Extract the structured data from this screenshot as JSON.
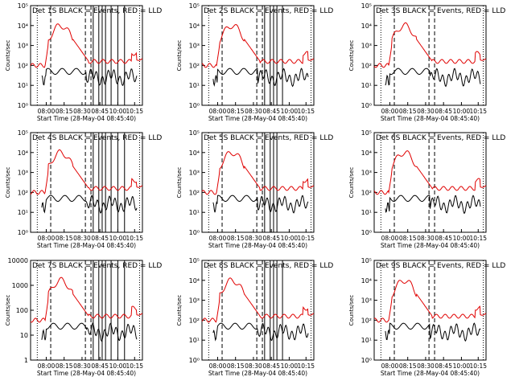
{
  "page": {
    "background": "#ffffff"
  },
  "colors": {
    "events": "#000000",
    "lld": "#e00000",
    "axis": "#000000"
  },
  "common": {
    "xlabel": "Start Time (28-May-04 08:45:40)",
    "ylabel": "Counts/sec",
    "xticks": [
      "08:00",
      "08:15",
      "08:30",
      "08:45",
      "10:00",
      "10:15"
    ],
    "legend_events": "BLACK = Events,",
    "legend_lld": "RED = LLD"
  },
  "chart_data": [
    {
      "type": "line",
      "title": "Det 1S BLACK = Events, RED = LLD",
      "ylim": [
        1,
        100000
      ],
      "yscale": "log",
      "yticks": [
        "10⁰",
        "10¹",
        "10²",
        "10³",
        "10⁴",
        "10⁵"
      ],
      "series": [
        {
          "name": "Events",
          "color": "#000000"
        },
        {
          "name": "LLD",
          "color": "#e00000"
        }
      ]
    },
    {
      "type": "line",
      "title": "Det 2S BLACK = Events, RED = LLD",
      "ylim": [
        1,
        100000
      ],
      "yscale": "log",
      "yticks": [
        "10⁰",
        "10¹",
        "10²",
        "10³",
        "10⁴",
        "10⁵"
      ],
      "series": [
        {
          "name": "Events",
          "color": "#000000"
        },
        {
          "name": "LLD",
          "color": "#e00000"
        }
      ]
    },
    {
      "type": "line",
      "title": "Det 3S BLACK = Events, RED = LLD",
      "ylim": [
        1,
        100000
      ],
      "yscale": "log",
      "yticks": [
        "10⁰",
        "10¹",
        "10²",
        "10³",
        "10⁴",
        "10⁵"
      ],
      "series": [
        {
          "name": "Events",
          "color": "#000000"
        },
        {
          "name": "LLD",
          "color": "#e00000"
        }
      ]
    },
    {
      "type": "line",
      "title": "Det 4S BLACK = Events, RED = LLD",
      "ylim": [
        1,
        100000
      ],
      "yscale": "log",
      "yticks": [
        "10⁰",
        "10¹",
        "10²",
        "10³",
        "10⁴",
        "10⁵"
      ],
      "series": [
        {
          "name": "Events",
          "color": "#000000"
        },
        {
          "name": "LLD",
          "color": "#e00000"
        }
      ]
    },
    {
      "type": "line",
      "title": "Det 5S BLACK = Events, RED = LLD",
      "ylim": [
        1,
        100000
      ],
      "yscale": "log",
      "yticks": [
        "10⁰",
        "10¹",
        "10²",
        "10³",
        "10⁴",
        "10⁵"
      ],
      "series": [
        {
          "name": "Events",
          "color": "#000000"
        },
        {
          "name": "LLD",
          "color": "#e00000"
        }
      ]
    },
    {
      "type": "line",
      "title": "Det 6S BLACK = Events, RED = LLD",
      "ylim": [
        1,
        100000
      ],
      "yscale": "log",
      "yticks": [
        "10⁰",
        "10¹",
        "10²",
        "10³",
        "10⁴",
        "10⁵"
      ],
      "series": [
        {
          "name": "Events",
          "color": "#000000"
        },
        {
          "name": "LLD",
          "color": "#e00000"
        }
      ]
    },
    {
      "type": "line",
      "title": "Det 7S BLACK = Events, RED = LLD",
      "ylim": [
        1,
        10000
      ],
      "yscale": "log",
      "yticks": [
        "1",
        "10",
        "100",
        "1000",
        "10000"
      ],
      "series": [
        {
          "name": "Events",
          "color": "#000000"
        },
        {
          "name": "LLD",
          "color": "#e00000"
        }
      ]
    },
    {
      "type": "line",
      "title": "Det 8S BLACK = Events, RED = LLD",
      "ylim": [
        1,
        100000
      ],
      "yscale": "log",
      "yticks": [
        "10⁰",
        "10¹",
        "10²",
        "10³",
        "10⁴",
        "10⁵"
      ],
      "series": [
        {
          "name": "Events",
          "color": "#000000"
        },
        {
          "name": "LLD",
          "color": "#e00000"
        }
      ]
    },
    {
      "type": "line",
      "title": "Det 9S BLACK = Events, RED = LLD",
      "ylim": [
        1,
        100000
      ],
      "yscale": "log",
      "yticks": [
        "10⁰",
        "10¹",
        "10²",
        "10³",
        "10⁴",
        "10⁵"
      ],
      "series": [
        {
          "name": "Events",
          "color": "#000000"
        },
        {
          "name": "LLD",
          "color": "#e00000"
        }
      ]
    }
  ]
}
